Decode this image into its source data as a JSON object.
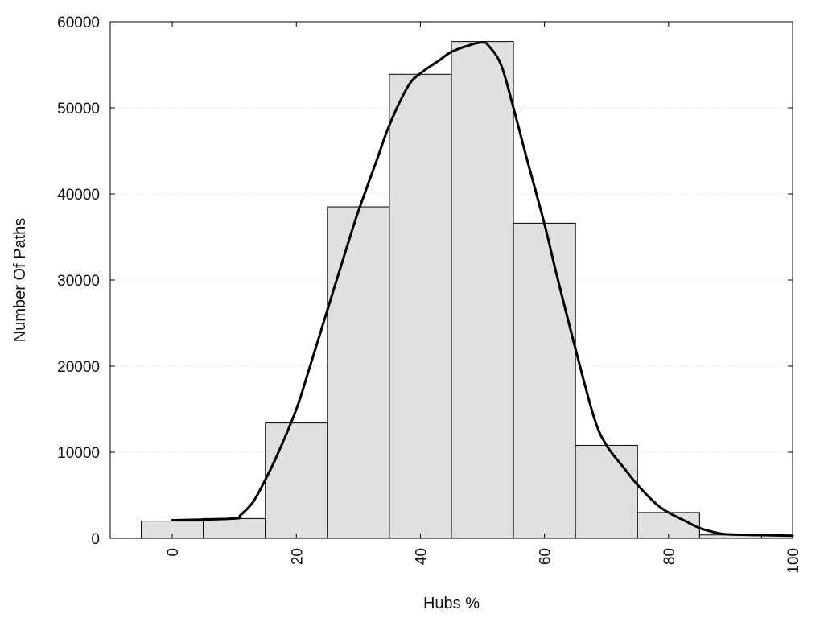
{
  "chart_data": {
    "type": "bar",
    "title": "",
    "xlabel": "Hubs %",
    "ylabel": "Number Of Paths",
    "xlim": [
      -10,
      100
    ],
    "ylim": [
      0,
      60000
    ],
    "x_ticks": [
      0,
      20,
      40,
      60,
      80,
      100
    ],
    "y_ticks": [
      0,
      10000,
      20000,
      30000,
      40000,
      50000,
      60000
    ],
    "grid": "horizontal-dotted",
    "legend": "none",
    "bar_width": 10,
    "bins": [
      {
        "x": 0,
        "value": 2000
      },
      {
        "x": 10,
        "value": 2300
      },
      {
        "x": 20,
        "value": 13400
      },
      {
        "x": 30,
        "value": 38500
      },
      {
        "x": 40,
        "value": 53900
      },
      {
        "x": 50,
        "value": 57700
      },
      {
        "x": 60,
        "value": 36600
      },
      {
        "x": 70,
        "value": 10800
      },
      {
        "x": 80,
        "value": 3000
      },
      {
        "x": 90,
        "value": 400
      },
      {
        "x": 100,
        "value": 300
      }
    ],
    "curve": [
      {
        "x": 0,
        "y": 2100
      },
      {
        "x": 10,
        "y": 2300
      },
      {
        "x": 11,
        "y": 2700
      },
      {
        "x": 13,
        "y": 4200
      },
      {
        "x": 15,
        "y": 6800
      },
      {
        "x": 17,
        "y": 9800
      },
      {
        "x": 20,
        "y": 15000
      },
      {
        "x": 22,
        "y": 19500
      },
      {
        "x": 25,
        "y": 26500
      },
      {
        "x": 28,
        "y": 33500
      },
      {
        "x": 30,
        "y": 38000
      },
      {
        "x": 33,
        "y": 44000
      },
      {
        "x": 35,
        "y": 48000
      },
      {
        "x": 38,
        "y": 52500
      },
      {
        "x": 40,
        "y": 54000
      },
      {
        "x": 43,
        "y": 55500
      },
      {
        "x": 45,
        "y": 56500
      },
      {
        "x": 48,
        "y": 57300
      },
      {
        "x": 50,
        "y": 57600
      },
      {
        "x": 51,
        "y": 57200
      },
      {
        "x": 53,
        "y": 55000
      },
      {
        "x": 55,
        "y": 50000
      },
      {
        "x": 57,
        "y": 44500
      },
      {
        "x": 60,
        "y": 36500
      },
      {
        "x": 62,
        "y": 30500
      },
      {
        "x": 65,
        "y": 22000
      },
      {
        "x": 68,
        "y": 14000
      },
      {
        "x": 70,
        "y": 10800
      },
      {
        "x": 73,
        "y": 8000
      },
      {
        "x": 75,
        "y": 6200
      },
      {
        "x": 78,
        "y": 4000
      },
      {
        "x": 80,
        "y": 3000
      },
      {
        "x": 83,
        "y": 1900
      },
      {
        "x": 85,
        "y": 1200
      },
      {
        "x": 88,
        "y": 600
      },
      {
        "x": 90,
        "y": 450
      },
      {
        "x": 95,
        "y": 380
      },
      {
        "x": 100,
        "y": 300
      }
    ],
    "colors": {
      "bar_fill": "#e0e0e0",
      "bar_stroke": "#000000",
      "curve": "#000000",
      "grid": "#c8c8c8",
      "frame": "#000000"
    }
  }
}
